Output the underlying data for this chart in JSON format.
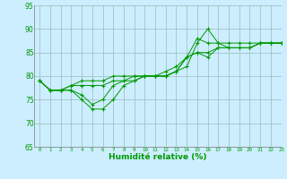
{
  "xlabel": "Humidité relative (%)",
  "xlim": [
    -0.5,
    23
  ],
  "ylim": [
    65,
    95
  ],
  "yticks": [
    65,
    70,
    75,
    80,
    85,
    90,
    95
  ],
  "xticks": [
    0,
    1,
    2,
    3,
    4,
    5,
    6,
    7,
    8,
    9,
    10,
    11,
    12,
    13,
    14,
    15,
    16,
    17,
    18,
    19,
    20,
    21,
    22,
    23
  ],
  "bg_color": "#cceeff",
  "grid_color": "#99bbbb",
  "line_color": "#009900",
  "marker": "+",
  "lines": [
    [
      79,
      77,
      77,
      77,
      75,
      73,
      73,
      75,
      78,
      79,
      80,
      80,
      80,
      81,
      82,
      87,
      90,
      87,
      87,
      87,
      87,
      87,
      87,
      87
    ],
    [
      79,
      77,
      77,
      77,
      76,
      74,
      75,
      78,
      79,
      79,
      80,
      80,
      80,
      81,
      84,
      88,
      87,
      87,
      86,
      86,
      86,
      87,
      87,
      87
    ],
    [
      79,
      77,
      77,
      78,
      78,
      78,
      78,
      79,
      79,
      80,
      80,
      80,
      80,
      81,
      84,
      85,
      84,
      86,
      86,
      86,
      86,
      87,
      87,
      87
    ],
    [
      79,
      77,
      77,
      78,
      79,
      79,
      79,
      80,
      80,
      80,
      80,
      80,
      81,
      82,
      84,
      85,
      85,
      86,
      86,
      86,
      86,
      87,
      87,
      87
    ]
  ]
}
